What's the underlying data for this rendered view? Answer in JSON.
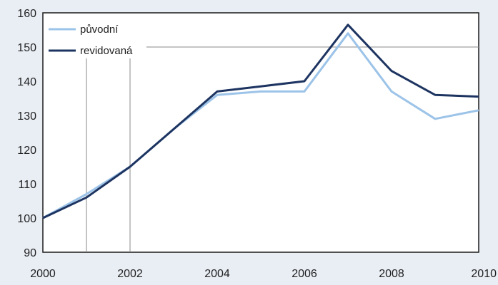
{
  "chart_data": {
    "type": "line",
    "title": "",
    "xlabel": "",
    "ylabel": "",
    "x": [
      2000,
      2001,
      2002,
      2003,
      2004,
      2005,
      2006,
      2007,
      2008,
      2009,
      2010
    ],
    "xlim": [
      2000,
      2010
    ],
    "ylim": [
      90,
      160
    ],
    "xticks": [
      "2000",
      "2002",
      "2004",
      "2006",
      "2008",
      "2010"
    ],
    "yticks": [
      "90",
      "100",
      "110",
      "120",
      "130",
      "140",
      "150",
      "160"
    ],
    "grid": "partial",
    "legend_position": "top-left",
    "series": [
      {
        "name": "původní",
        "color": "#9cc3e8",
        "values": [
          100,
          107,
          115,
          126,
          136,
          137,
          137,
          154,
          137,
          129,
          131.5
        ]
      },
      {
        "name": "revidovaná",
        "color": "#1d3461",
        "values": [
          100,
          106,
          115,
          126,
          137,
          138.5,
          140,
          156.5,
          143,
          136,
          135.5
        ]
      }
    ]
  }
}
